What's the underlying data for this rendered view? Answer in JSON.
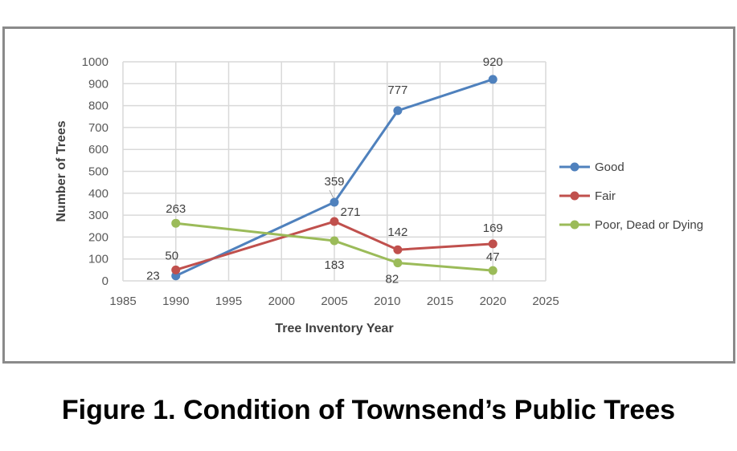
{
  "caption": "Figure 1. Condition of Townsend’s Public Trees",
  "chart_data": {
    "type": "line",
    "title": "",
    "xlabel": "Tree Inventory Year",
    "ylabel": "Number of Trees",
    "xlim": [
      1985,
      2025
    ],
    "ylim": [
      0,
      1000
    ],
    "x_ticks": [
      1985,
      1990,
      1995,
      2000,
      2005,
      2010,
      2015,
      2020,
      2025
    ],
    "y_ticks": [
      0,
      100,
      200,
      300,
      400,
      500,
      600,
      700,
      800,
      900,
      1000
    ],
    "grid": true,
    "legend_position": "right",
    "series": [
      {
        "name": "Good",
        "color": "#4f81bd",
        "x": [
          1990,
          2005,
          2011,
          2020
        ],
        "y": [
          23,
          359,
          777,
          920
        ],
        "labels": [
          "23",
          "359",
          "777",
          "920"
        ]
      },
      {
        "name": "Fair",
        "color": "#c0504d",
        "x": [
          1990,
          2005,
          2011,
          2020
        ],
        "y": [
          50,
          271,
          142,
          169
        ],
        "labels": [
          "50",
          "271",
          "142",
          "169"
        ]
      },
      {
        "name": "Poor, Dead or Dying",
        "color": "#9bbb59",
        "x": [
          1990,
          2005,
          2011,
          2020
        ],
        "y": [
          263,
          183,
          82,
          47
        ],
        "labels": [
          "263",
          "183",
          "82",
          "47"
        ]
      }
    ]
  }
}
